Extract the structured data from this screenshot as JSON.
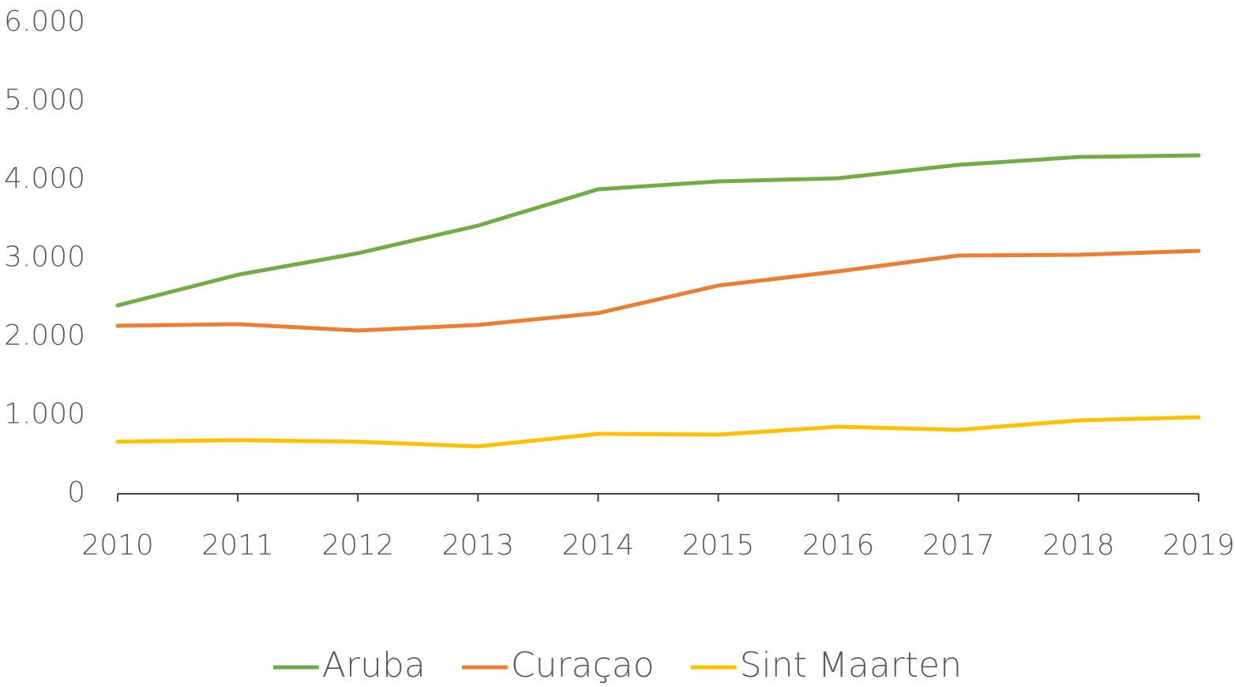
{
  "chart_data": {
    "type": "line",
    "categories": [
      "2010",
      "2011",
      "2012",
      "2013",
      "2014",
      "2015",
      "2016",
      "2017",
      "2018",
      "2019"
    ],
    "series": [
      {
        "name": "Aruba",
        "color": "#70ad47",
        "values": [
          2400,
          2790,
          3065,
          3417,
          3879,
          3980,
          4020,
          4191,
          4291,
          4312
        ]
      },
      {
        "name": "Curaçao",
        "color": "#ed7d31",
        "values": [
          2141,
          2161,
          2080,
          2151,
          2302,
          2653,
          2834,
          3035,
          3045,
          3095
        ]
      },
      {
        "name": "Sint Maarten",
        "color": "#ffc000",
        "values": [
          663,
          683,
          663,
          603,
          764,
          754,
          854,
          814,
          935,
          975
        ]
      }
    ],
    "ylim": [
      0,
      6000
    ],
    "yticks": [
      0,
      {
        "value": 1000,
        "label": "1.000"
      },
      {
        "value": 2000,
        "label": "2.000"
      },
      {
        "value": 3000,
        "label": "3.000"
      },
      {
        "value": 4000,
        "label": "4.000"
      },
      {
        "value": 5000,
        "label": "5.000"
      },
      {
        "value": 6000,
        "label": "6.000"
      }
    ],
    "grid": false,
    "legend": "bottom"
  }
}
